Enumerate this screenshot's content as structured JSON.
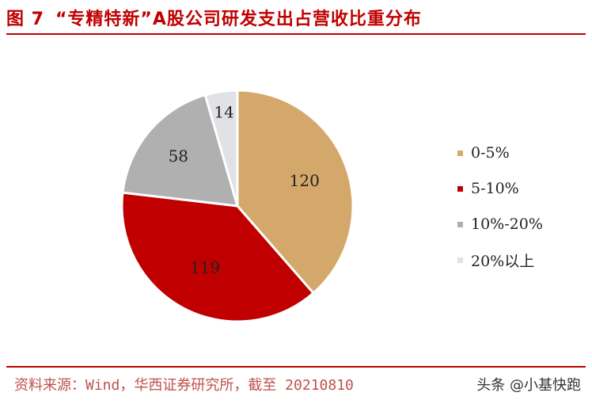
{
  "header": {
    "fig_label": "图 7",
    "title_text": "“专精特新”A股公司研发支出占营收比重分布"
  },
  "chart_data": {
    "type": "pie",
    "title": "“专精特新”A股公司研发支出占营收比重分布",
    "categories": [
      "0-5%",
      "5-10%",
      "10%-20%",
      "20%以上"
    ],
    "values": [
      120,
      119,
      58,
      14
    ],
    "colors": [
      "#d4a76a",
      "#c00000",
      "#b0b0b0",
      "#e2e2e6"
    ],
    "label_colors": [
      "#222222",
      "#222222",
      "#222222",
      "#222222"
    ],
    "legend_position": "right",
    "start": "top, clockwise"
  },
  "footer": {
    "source": "资料来源：Wind，华西证券研究所，截至 20210810",
    "watermark": "头条 @小基快跑"
  }
}
